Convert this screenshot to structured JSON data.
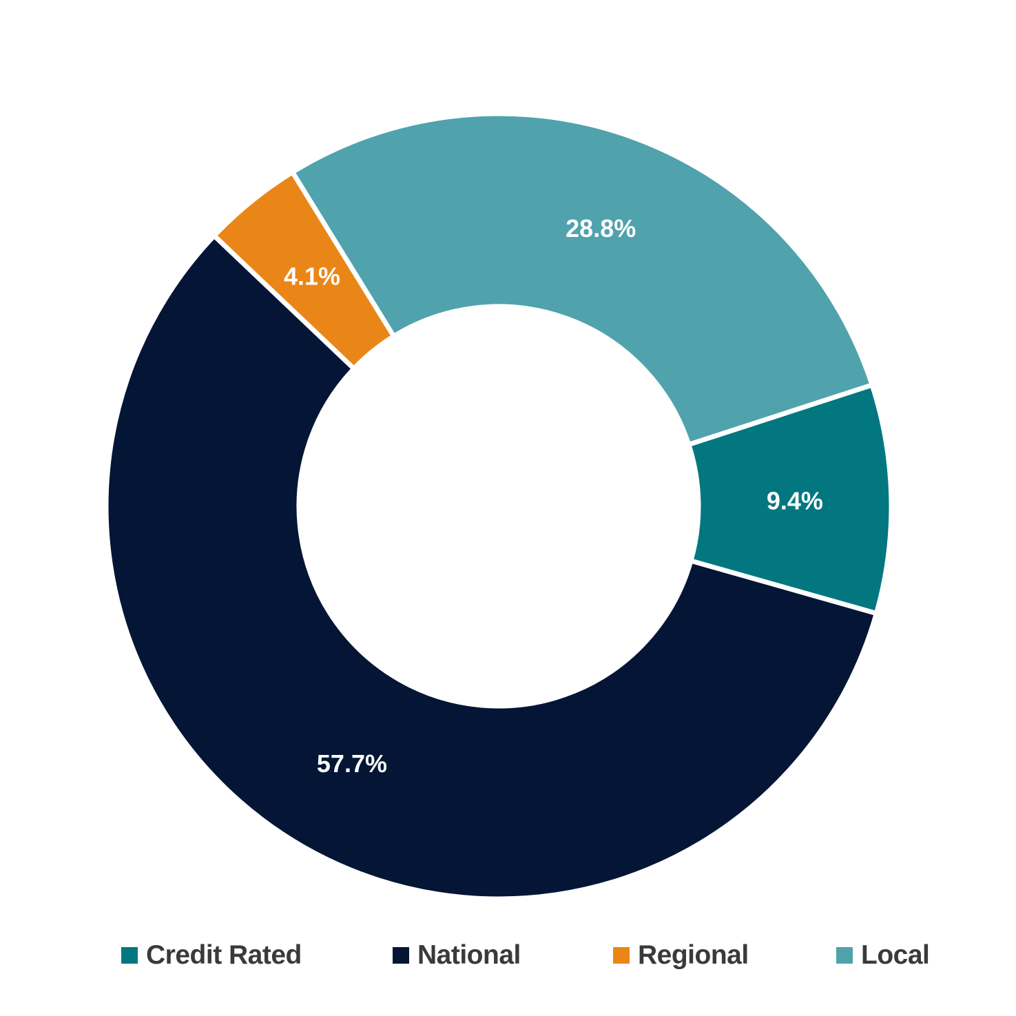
{
  "chart_data": {
    "type": "pie",
    "variant": "donut",
    "categories": [
      "Credit Rated",
      "National",
      "Regional",
      "Local"
    ],
    "values": [
      9.4,
      57.7,
      4.1,
      28.8
    ],
    "value_labels": [
      "9.4%",
      "57.7%",
      "4.1%",
      "28.8%"
    ],
    "colors": [
      "#037780",
      "#051535",
      "#ea8617",
      "#50a2ad"
    ],
    "legend_placement": "bottom",
    "title": "",
    "subtitle": ""
  }
}
